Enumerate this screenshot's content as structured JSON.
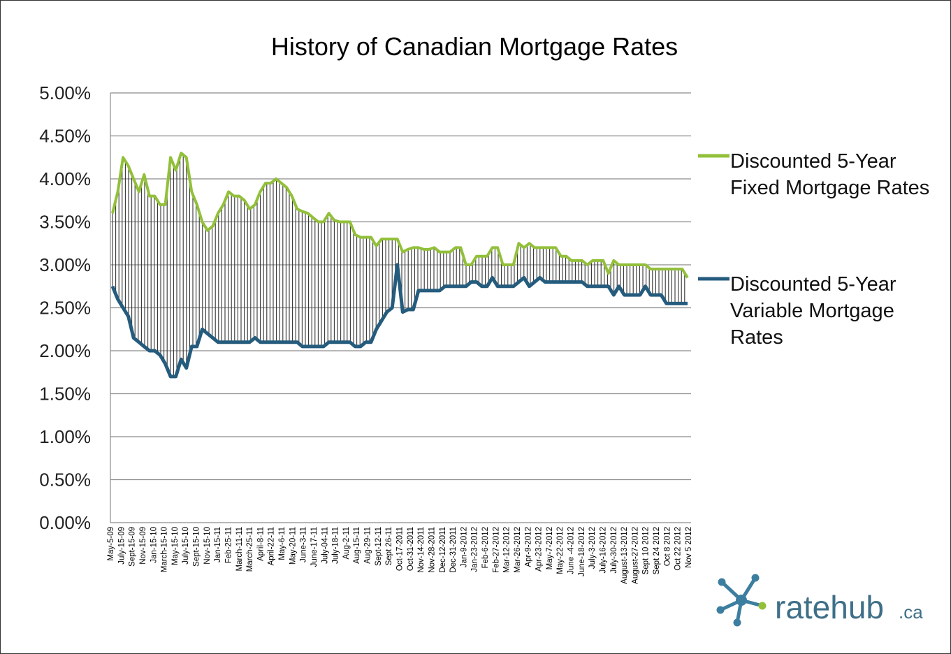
{
  "colors": {
    "fixed": "#92c03a",
    "variable": "#255c7d",
    "grid": "#8c8c8c",
    "spread_hatch": "#333333",
    "logo_text": "#3f6f88",
    "logo_icon": "#3c7ea0",
    "logo_accent": "#92c03a"
  },
  "logo": {
    "icon": "starburst-molecule-icon",
    "main": "ratehub",
    "tld": ".ca"
  },
  "chart_data": {
    "type": "area",
    "title": "History of Canadian Mortgage Rates",
    "xlabel": "",
    "ylabel": "",
    "ylim": [
      0,
      5
    ],
    "yticks": [
      0,
      0.5,
      1,
      1.5,
      2,
      2.5,
      3,
      3.5,
      4,
      4.5,
      5
    ],
    "ytick_labels": [
      "0.00%",
      "0.50%",
      "1.00%",
      "1.50%",
      "2.00%",
      "2.50%",
      "3.00%",
      "3.50%",
      "4.00%",
      "4.50%",
      "5.00%"
    ],
    "grid": true,
    "legend": "right",
    "x_tick_labels": [
      "May-5-09",
      "July-15-09",
      "Sept-15-09",
      "Nov-15-09",
      "Jan-15-10",
      "March-15-10",
      "May-15-10",
      "July-15-10",
      "Sept-15-10",
      "Nov-15-10",
      "Jan-15-11",
      "Feb-25-11",
      "March-11-11",
      "March-25-11",
      "April-8-11",
      "April-22-11",
      "May-6-11",
      "May-20-11",
      "June-3-11",
      "June-17-11",
      "July-04-11",
      "July-18-11",
      "Aug-2-11",
      "Aug-15-11",
      "Aug-29-11",
      "Sept-12-11",
      "Sept 26-11",
      "Oct-17-2011",
      "Oct-31-2011",
      "Nov-14-2011",
      "Nov-28-2011",
      "Dec-12-2011",
      "Dec-31-2011",
      "Jan-9-2012",
      "Jan-23-2012",
      "Feb-6-2012",
      "Feb-27-2012",
      "Mar-12-2012",
      "Mar-26-2012",
      "Apr-9-2012",
      "Apr-23-2012",
      "May-7-2012",
      "May-22-2012",
      "June -4-2012",
      "June-18-2012",
      "July-3-2012",
      "July-16-2012",
      "July-30-2012",
      "August-13-2012",
      "August-27-2012",
      "Sept 10 2012",
      "Sept 24 2012",
      "Oct 8 2012",
      "Oct 22 2012",
      "Nov 5 2012"
    ],
    "series": [
      {
        "name": "Discounted 5-Year Fixed Mortgage Rates",
        "values": [
          3.6,
          3.85,
          4.25,
          4.15,
          4.0,
          3.85,
          4.05,
          3.8,
          3.8,
          3.7,
          3.7,
          4.25,
          4.1,
          4.3,
          4.25,
          3.85,
          3.7,
          3.5,
          3.4,
          3.45,
          3.6,
          3.7,
          3.85,
          3.8,
          3.8,
          3.75,
          3.65,
          3.7,
          3.85,
          3.95,
          3.95,
          4.0,
          3.95,
          3.9,
          3.8,
          3.65,
          3.62,
          3.6,
          3.55,
          3.5,
          3.5,
          3.6,
          3.52,
          3.5,
          3.5,
          3.5,
          3.35,
          3.32,
          3.32,
          3.32,
          3.22,
          3.3,
          3.3,
          3.3,
          3.3,
          3.15,
          3.18,
          3.2,
          3.2,
          3.18,
          3.18,
          3.2,
          3.15,
          3.15,
          3.15,
          3.2,
          3.2,
          3.0,
          3.0,
          3.1,
          3.1,
          3.1,
          3.2,
          3.2,
          3.0,
          3.0,
          3.0,
          3.25,
          3.2,
          3.25,
          3.2,
          3.2,
          3.2,
          3.2,
          3.2,
          3.1,
          3.1,
          3.05,
          3.05,
          3.05,
          3.0,
          3.05,
          3.05,
          3.05,
          2.9,
          3.05,
          3.0,
          3.0,
          3.0,
          3.0,
          3.0,
          3.0,
          2.95,
          2.95,
          2.95,
          2.95,
          2.95,
          2.95,
          2.95,
          2.85
        ]
      },
      {
        "name": "Discounted 5-Year Variable Mortgage Rates",
        "values": [
          2.75,
          2.6,
          2.5,
          2.4,
          2.15,
          2.1,
          2.05,
          2.0,
          2.0,
          1.95,
          1.85,
          1.7,
          1.7,
          1.9,
          1.8,
          2.05,
          2.05,
          2.25,
          2.2,
          2.15,
          2.1,
          2.1,
          2.1,
          2.1,
          2.1,
          2.1,
          2.1,
          2.15,
          2.1,
          2.1,
          2.1,
          2.1,
          2.1,
          2.1,
          2.1,
          2.1,
          2.05,
          2.05,
          2.05,
          2.05,
          2.05,
          2.1,
          2.1,
          2.1,
          2.1,
          2.1,
          2.05,
          2.05,
          2.1,
          2.1,
          2.25,
          2.35,
          2.45,
          2.5,
          3.0,
          2.45,
          2.48,
          2.48,
          2.7,
          2.7,
          2.7,
          2.7,
          2.7,
          2.75,
          2.75,
          2.75,
          2.75,
          2.75,
          2.8,
          2.8,
          2.75,
          2.75,
          2.85,
          2.75,
          2.75,
          2.75,
          2.75,
          2.8,
          2.85,
          2.75,
          2.8,
          2.85,
          2.8,
          2.8,
          2.8,
          2.8,
          2.8,
          2.8,
          2.8,
          2.8,
          2.75,
          2.75,
          2.75,
          2.75,
          2.75,
          2.65,
          2.75,
          2.65,
          2.65,
          2.65,
          2.65,
          2.75,
          2.65,
          2.65,
          2.65,
          2.55,
          2.55,
          2.55,
          2.55,
          2.55
        ]
      }
    ]
  }
}
